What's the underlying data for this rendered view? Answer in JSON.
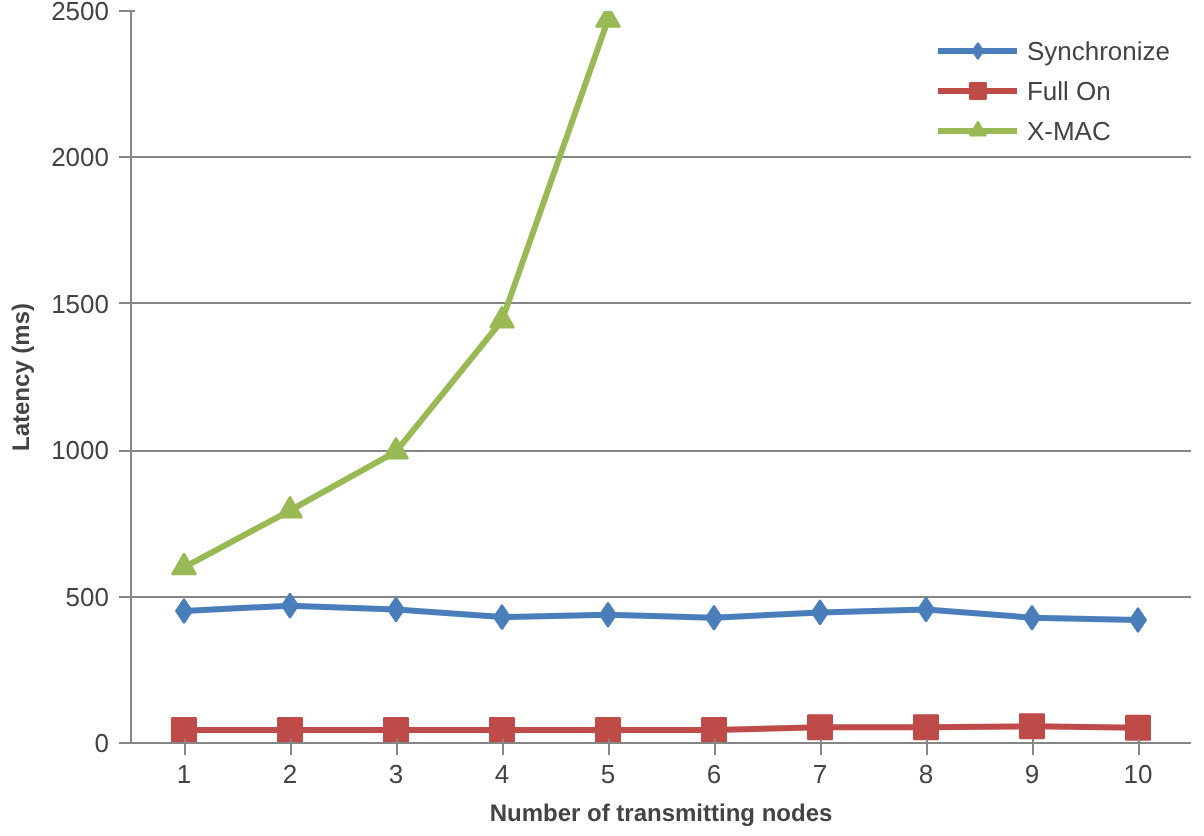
{
  "chart_data": {
    "type": "line",
    "xlabel": "Number of transmitting nodes",
    "ylabel": "Latency (ms)",
    "categories": [
      "1",
      "2",
      "3",
      "4",
      "5",
      "6",
      "7",
      "8",
      "9",
      "10"
    ],
    "series": [
      {
        "name": "Synchronize",
        "color": "#4a7ebb",
        "marker": "diamond",
        "values": [
          451,
          469,
          456,
          430,
          438,
          428,
          446,
          456,
          428,
          420
        ]
      },
      {
        "name": "Full On",
        "color": "#be4b48",
        "marker": "square",
        "values": [
          44,
          44,
          44,
          44,
          44,
          44,
          54,
          54,
          57,
          52
        ]
      },
      {
        "name": "X-MAC",
        "color": "#98b954",
        "marker": "triangle",
        "values": [
          600,
          794,
          995,
          1443,
          2470,
          null,
          null,
          null,
          null,
          null
        ]
      }
    ],
    "ylim": [
      0,
      2500
    ],
    "yticks": [
      0,
      500,
      1000,
      1500,
      2000,
      2500
    ],
    "grid": "y",
    "legend": "top right"
  }
}
